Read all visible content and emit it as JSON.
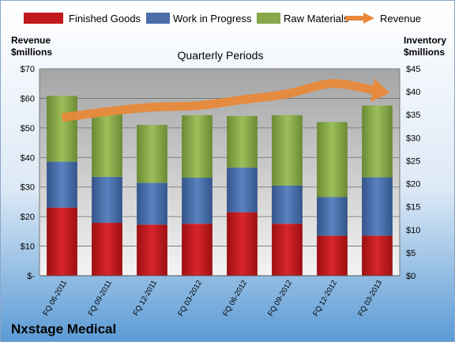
{
  "chart_data": {
    "type": "bar",
    "title": "Quarterly Periods",
    "company": "Nxstage Medical",
    "left_axis_label": [
      "Revenue",
      "$millions"
    ],
    "right_axis_label": [
      "Inventory",
      "$millions"
    ],
    "left_ticks": [
      "$-",
      "$10",
      "$20",
      "$30",
      "$40",
      "$50",
      "$60",
      "$70"
    ],
    "right_ticks": [
      "$0",
      "$5",
      "$10",
      "$15",
      "$20",
      "$25",
      "$30",
      "$35",
      "$40",
      "$45"
    ],
    "ylim_left": [
      0,
      70
    ],
    "ylim_right": [
      0,
      45
    ],
    "stacked": true,
    "bars_on_axis": "right",
    "line_on_axis": "left",
    "categories": [
      "FQ 06-2011",
      "FQ 09-2011",
      "FQ 12-2011",
      "FQ 03-2012",
      "FQ 06-2012",
      "FQ 09-2012",
      "FQ 12-2012",
      "FQ 03-2013"
    ],
    "series": [
      {
        "name": "Finished Goods",
        "type": "bar",
        "color": "#c0181c",
        "values": [
          14.8,
          11.5,
          11.1,
          11.3,
          13.8,
          11.3,
          8.7,
          8.7
        ]
      },
      {
        "name": "Work in Progress",
        "type": "bar",
        "color": "#4a6ea8",
        "values": [
          10.0,
          10.0,
          9.1,
          10.0,
          9.7,
          8.3,
          8.4,
          12.7
        ]
      },
      {
        "name": "Raw Materials",
        "type": "bar",
        "color": "#86a84a",
        "values": [
          14.3,
          13.8,
          12.6,
          13.6,
          11.2,
          15.3,
          16.3,
          15.6
        ]
      },
      {
        "name": "Revenue",
        "type": "line",
        "color": "#e8893a",
        "values": [
          53.5,
          55.5,
          57.0,
          57.5,
          59.5,
          61.5,
          65.0,
          62.5
        ]
      }
    ],
    "grid": true,
    "legend_position": "top"
  }
}
